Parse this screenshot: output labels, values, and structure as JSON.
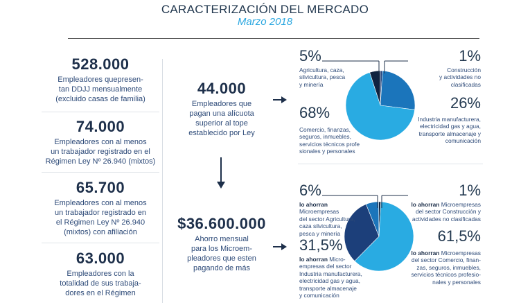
{
  "header": {
    "title": "CARACTERIZACIÓN DEL MERCADO",
    "subtitle": "Marzo 2018"
  },
  "left_stats": [
    {
      "value": "528.000",
      "lines": [
        "Empleadores quepresen-",
        "tan DDJJ mensualmente",
        "(excluido casas de familia)"
      ]
    },
    {
      "value": "74.000",
      "lines": [
        "Empleadores con al menos",
        "un trabajador registrado en el",
        "Régimen Ley Nº 26.940 (mixtos)"
      ]
    },
    {
      "value": "65.700",
      "lines": [
        "Empleadores con al menos",
        "un trabajador registrado en",
        "el Régimen Ley Nº 26.940",
        "(mixtos) con afiliación"
      ]
    },
    {
      "value": "63.000",
      "lines": [
        "Empleadores con la",
        "totalidad de sus trabaja-",
        "dores en el Régimen"
      ]
    }
  ],
  "middle_stats": [
    {
      "value": "44.000",
      "lines": [
        "Empleadores que",
        "pagan una alícuota",
        "superior al tope",
        "establecido por Ley"
      ]
    },
    {
      "value": "$36.600.000",
      "lines": [
        "Ahorro mensual",
        "para los Microem-",
        "pleadores que esten",
        "pagando de más"
      ]
    }
  ],
  "arrows": {
    "right": "➔",
    "down": "↓"
  },
  "colors": {
    "light_blue": "#29abe2",
    "mid_blue": "#1b75bb",
    "dark_navy": "#1c3f7a",
    "very_dark": "#10233f"
  },
  "chart_data": [
    {
      "type": "pie",
      "title": "",
      "slices": [
        {
          "label": "Agricultura, caza, silvicultura, pesca y minería",
          "value": 5,
          "pct_text": "5%",
          "color": "#10233f",
          "lines": [
            "Agricultura, caza,",
            "silvicultura, pesca",
            "y minería"
          ]
        },
        {
          "label": "Construcción y actividades no clasificadas",
          "value": 1,
          "pct_text": "1%",
          "color": "#1c3f7a",
          "lines": [
            "Construcción",
            "y actividades no",
            "clasificadas"
          ]
        },
        {
          "label": "Industria manufacturera, electricidad gas y agua, transporte almacenaje y comunicación",
          "value": 26,
          "pct_text": "26%",
          "color": "#1b75bb",
          "lines": [
            "Industria manufacturera,",
            "electricidad gas y agua,",
            "transporte almacenaje y",
            "comunicación"
          ]
        },
        {
          "label": "Comercio, finanzas, seguros, inmuebles, servicios técnicos profesionales y personales",
          "value": 68,
          "pct_text": "68%",
          "color": "#29abe2",
          "lines": [
            "Comercio, finanzas,",
            "seguros, inmuebles,",
            "servicios técnicos profe",
            "sionales y personales"
          ]
        }
      ]
    },
    {
      "type": "pie",
      "title": "",
      "slices": [
        {
          "label": "Microempresas del sector Agricultura, caza silvicultura, pesca y minería",
          "value": 6,
          "pct_text": "6%",
          "color": "#1b75bb",
          "bold": "lo ahorran",
          "lines": [
            "Microempresas",
            "del sector Agricultura,",
            "caza silvicultura,",
            "pesca y minería"
          ]
        },
        {
          "label": "Microempresas del sector Construcción y actividades no clasificadas",
          "value": 1,
          "pct_text": "1%",
          "color": "#10233f",
          "bold": "lo ahorran",
          "lines": [
            "Microempresas",
            "del sector Construcción y",
            "actividades no clasificadas"
          ]
        },
        {
          "label": "Microempresas del sector Comercio, finanzas, seguros, inmuebles, servicios técnicos profesionales y personales",
          "value": 61.5,
          "pct_text": "61,5%",
          "color": "#29abe2",
          "bold": "lo ahorran",
          "lines": [
            "Microempresas",
            "del sector Comercio, finan-",
            "zas, seguros, inmuebles,",
            "servicios técnicos profesio-",
            "nales y personales"
          ]
        },
        {
          "label": "Microempresas del sector Industria manufacturera, electricidad gas y agua, transporte almacenaje y comunicación",
          "value": 31.5,
          "pct_text": "31,5%",
          "color": "#1c3f7a",
          "bold": "lo ahorran",
          "lines": [
            "Micro-",
            "empresas del sector",
            "Industria manufacturera,",
            "electricidad gas y agua,",
            "transporte almacenaje",
            "y comunicación"
          ]
        }
      ]
    }
  ]
}
